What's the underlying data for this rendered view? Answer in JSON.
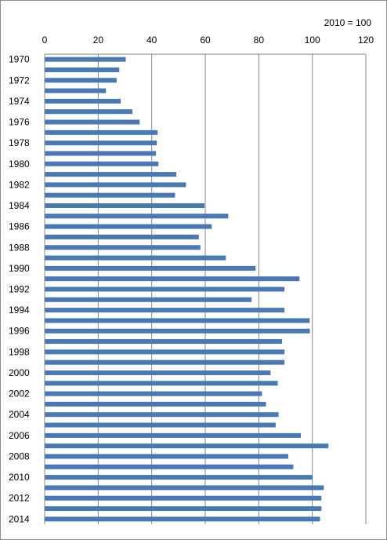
{
  "chart_data": {
    "type": "bar",
    "orientation": "horizontal",
    "note": "2010 = 100",
    "title": "",
    "xlabel": "",
    "ylabel": "",
    "xlim": [
      0,
      120
    ],
    "x_ticks": [
      0,
      20,
      40,
      60,
      80,
      100,
      120
    ],
    "grid": true,
    "legend": "none",
    "bar_color": "#4a78b5",
    "categories": [
      "1970",
      "1971",
      "1972",
      "1973",
      "1974",
      "1975",
      "1976",
      "1977",
      "1978",
      "1979",
      "1980",
      "1981",
      "1982",
      "1983",
      "1984",
      "1985",
      "1986",
      "1987",
      "1988",
      "1989",
      "1990",
      "1991",
      "1992",
      "1993",
      "1994",
      "1995",
      "1996",
      "1997",
      "1998",
      "1999",
      "2000",
      "2001",
      "2002",
      "2003",
      "2004",
      "2005",
      "2006",
      "2007",
      "2008",
      "2009",
      "2010",
      "2011",
      "2012",
      "2013",
      "2014"
    ],
    "category_labels": [
      "1970",
      "",
      "1972",
      "",
      "1974",
      "",
      "1976",
      "",
      "1978",
      "",
      "1980",
      "",
      "1982",
      "",
      "1984",
      "",
      "1986",
      "",
      "1988",
      "",
      "1990",
      "",
      "1992",
      "",
      "1994",
      "",
      "1996",
      "",
      "1998",
      "",
      "2000",
      "",
      "2002",
      "",
      "2004",
      "",
      "2006",
      "",
      "2008",
      "",
      "2010",
      "",
      "2012",
      "",
      "2014"
    ],
    "values": [
      30.3,
      27.9,
      26.9,
      22.9,
      28.4,
      32.8,
      35.5,
      42.2,
      41.9,
      41.6,
      42.5,
      49.2,
      52.8,
      48.7,
      59.7,
      68.6,
      62.4,
      57.6,
      58.2,
      67.7,
      78.8,
      95.2,
      89.6,
      77.3,
      89.6,
      99.0,
      99.1,
      88.7,
      89.6,
      89.6,
      84.4,
      87.1,
      81.2,
      82.7,
      87.4,
      86.3,
      95.7,
      106.0,
      91.0,
      92.9,
      100.0,
      104.3,
      103.4,
      103.4,
      102.9
    ]
  }
}
